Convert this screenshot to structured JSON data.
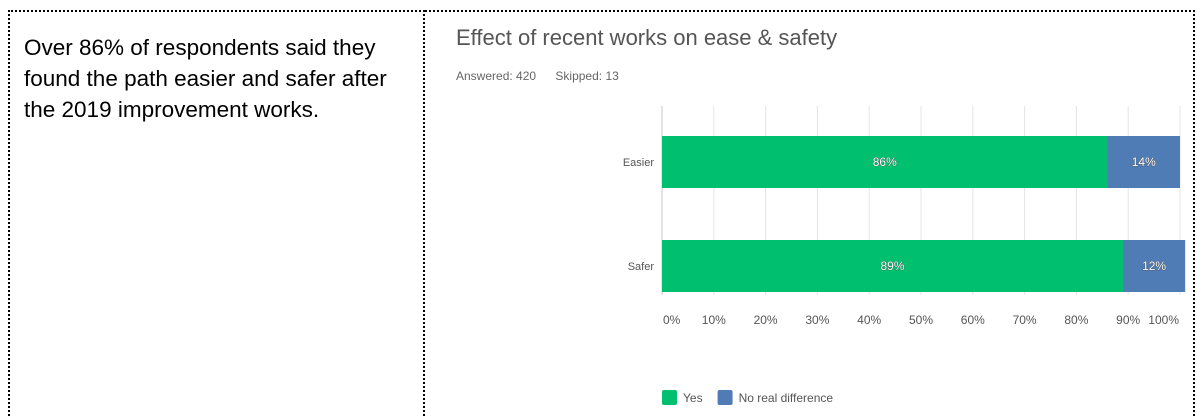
{
  "summary_text": "Over 86% of respondents said they found the path easier and safer after the 2019 improvement works.",
  "chart_data": {
    "type": "bar",
    "orientation": "horizontal",
    "stacked": true,
    "title": "Effect of recent works on ease & safety",
    "answered_label": "Answered: 420",
    "skipped_label": "Skipped: 13",
    "categories": [
      "Easier",
      "Safer"
    ],
    "series": [
      {
        "name": "Yes",
        "values": [
          86,
          89
        ],
        "labels": [
          "86%",
          "89%"
        ],
        "color": "#00bf6f"
      },
      {
        "name": "No real difference",
        "values": [
          14,
          12
        ],
        "labels": [
          "14%",
          "12%"
        ],
        "color": "#507cb6"
      }
    ],
    "xlim": [
      0,
      100
    ],
    "xticks": [
      "0%",
      "10%",
      "20%",
      "30%",
      "40%",
      "50%",
      "60%",
      "70%",
      "80%",
      "90%",
      "100%"
    ],
    "grid": true,
    "legend_position": "bottom-left"
  }
}
